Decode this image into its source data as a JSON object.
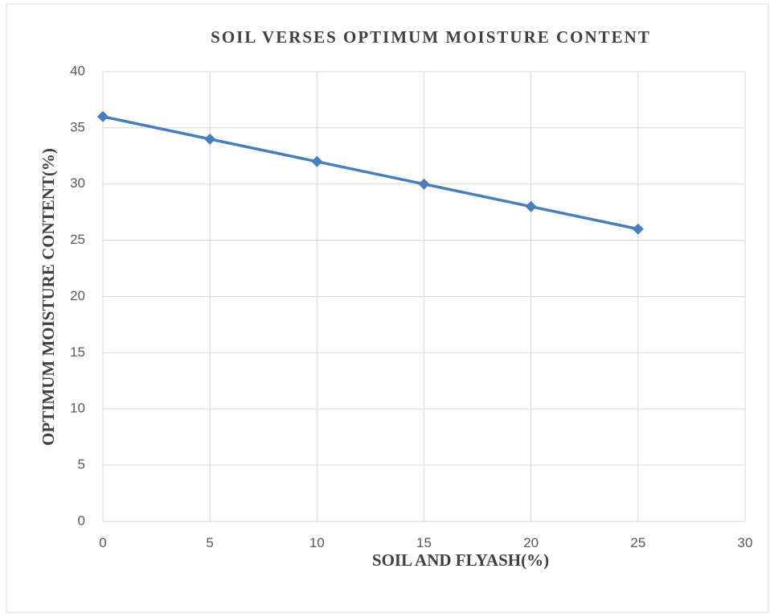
{
  "chart_data": {
    "type": "line",
    "title": "SOIL VERSES OPTIMUM MOISTURE CONTENT",
    "x_label": "SOIL AND FLYASH(%)",
    "y_label": "OPTIMUM MOISTURE CONTENT(%)",
    "x": [
      0,
      5,
      10,
      15,
      20,
      25
    ],
    "series": [
      {
        "color": "#4a7ebb",
        "values": [
          36,
          34,
          32,
          30,
          28,
          26
        ]
      }
    ],
    "xlim": [
      0,
      30
    ],
    "xticks": [
      0,
      5,
      10,
      15,
      20,
      25,
      30
    ],
    "ylim": [
      0,
      40
    ],
    "yticks": [
      0,
      5,
      10,
      15,
      20,
      25,
      30,
      35,
      40
    ],
    "grid": true
  }
}
